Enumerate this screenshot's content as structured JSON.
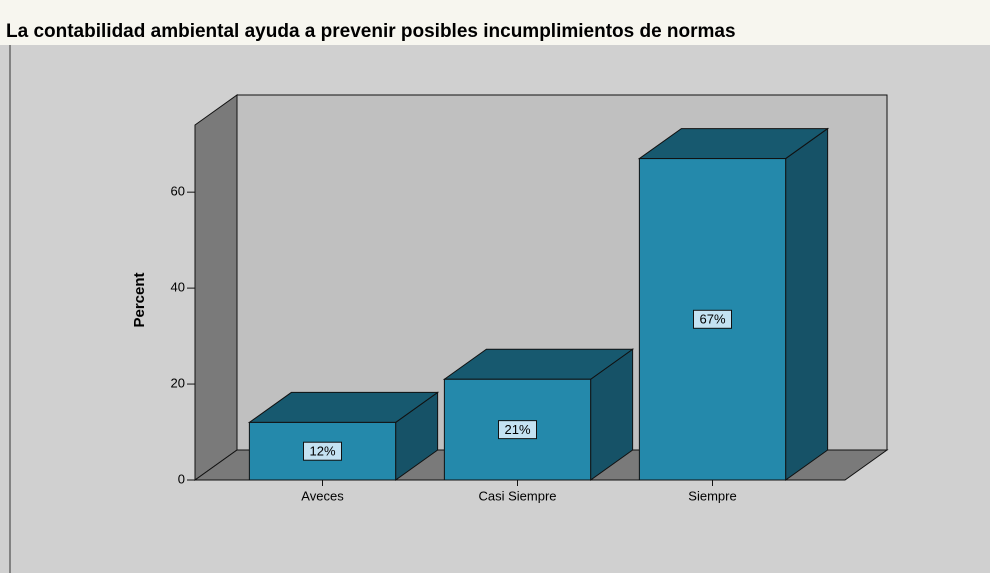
{
  "chart_data": {
    "type": "bar3d",
    "title": "La contabilidad ambiental ayuda a prevenir posibles incumplimientos de normas",
    "y_label": "Percent",
    "categories": [
      "Aveces",
      "Casi Siempre",
      "Siempre"
    ],
    "values": [
      12,
      21,
      67
    ],
    "value_labels": [
      "12%",
      "21%",
      "67%"
    ],
    "color": "#2489ab",
    "ylim": [
      0,
      74
    ],
    "yticks": [
      0,
      20,
      40,
      60
    ],
    "grid": false
  }
}
